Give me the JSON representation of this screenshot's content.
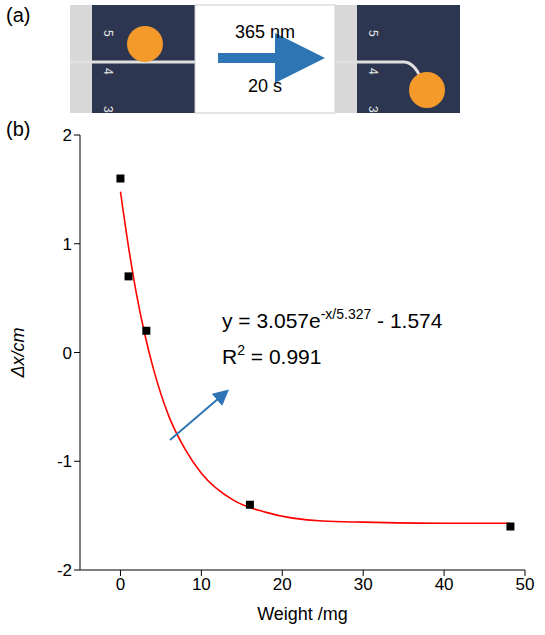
{
  "panel_a": {
    "label": "(a)",
    "arrow_text_above": "365 nm",
    "arrow_text_below": "20 s",
    "ruler_labels": [
      "5",
      "4",
      "3"
    ]
  },
  "chart_data": {
    "panel_label": "(b)",
    "type": "scatter",
    "xlabel": "Weight /mg",
    "ylabel": "Δx/cm",
    "xlim": [
      -5,
      50
    ],
    "xticks": [
      0,
      10,
      20,
      30,
      40,
      50
    ],
    "ylim": [
      -2,
      2
    ],
    "yticks": [
      -2,
      -1,
      0,
      1,
      2
    ],
    "grid": false,
    "series": [
      {
        "type": "scatter",
        "color": "#000000",
        "marker": "square",
        "x": [
          0,
          1,
          3.2,
          16,
          48.2
        ],
        "values": [
          1.6,
          0.7,
          0.2,
          -1.4,
          -1.6
        ]
      },
      {
        "type": "line",
        "color": "#ff0000",
        "line_style": "solid",
        "x": [
          0,
          1,
          2,
          3,
          4,
          6,
          8,
          10,
          14,
          18,
          25,
          30,
          40,
          48
        ],
        "values": [
          1.48,
          0.97,
          0.53,
          0.17,
          -0.13,
          -0.59,
          -0.89,
          -1.11,
          -1.36,
          -1.47,
          -1.55,
          -1.56,
          -1.57,
          -1.57
        ]
      }
    ],
    "annotations": {
      "equation": {
        "base": "y = 3.057e",
        "sup": "-x/5.327",
        "tail": " - 1.574"
      },
      "r2": {
        "base": "R",
        "sup": "2",
        "tail": " = 0.991"
      }
    }
  }
}
